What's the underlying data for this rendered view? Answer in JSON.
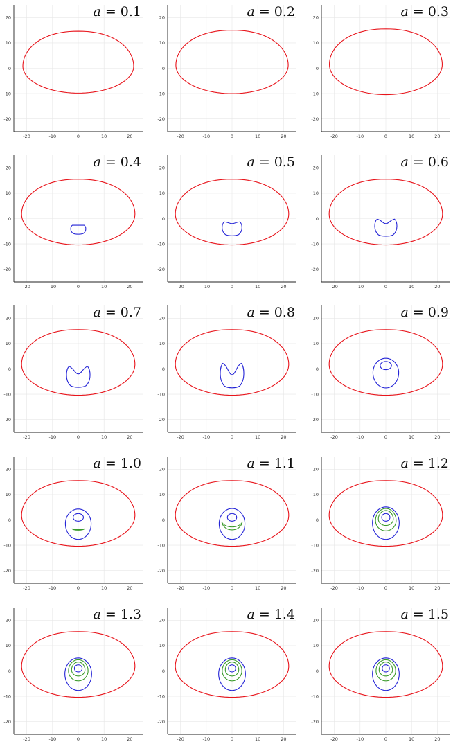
{
  "colors": {
    "outer": "#e8141b",
    "blue": "#2323d6",
    "green": "#3a9a2a"
  },
  "chart_data": {
    "type": "line",
    "layout": "5x3 grid of panels",
    "xlim": [
      -25,
      25
    ],
    "ylim": [
      -25,
      25
    ],
    "xticks": [
      -20,
      -10,
      0,
      10,
      20
    ],
    "yticks": [
      -20,
      -10,
      0,
      10,
      20
    ],
    "grid": true,
    "legend": "none",
    "panels": [
      {
        "title_var": "a",
        "title_eq": "=",
        "title_val": "0.1",
        "outer": {
          "cx": 0,
          "yc": 0.8,
          "rx": 21.5,
          "top": 13.8,
          "bottom": 10.6
        },
        "blue": [],
        "green": []
      },
      {
        "title_var": "a",
        "title_eq": "=",
        "title_val": "0.2",
        "outer": {
          "cx": 0,
          "yc": 1.2,
          "rx": 21.8,
          "top": 13.8,
          "bottom": 11.2
        },
        "blue": [],
        "green": []
      },
      {
        "title_var": "a",
        "title_eq": "=",
        "title_val": "0.3",
        "outer": {
          "cx": 0,
          "yc": 1.5,
          "rx": 21.9,
          "top": 14.0,
          "bottom": 11.9
        },
        "blue": [],
        "green": []
      },
      {
        "title_var": "a",
        "title_eq": "=",
        "title_val": "0.4",
        "outer": {
          "cx": 0,
          "yc": 1.8,
          "rx": 22.0,
          "top": 13.7,
          "bottom": 12.2
        },
        "blue": [
          {
            "kind": "dish",
            "cx": 0,
            "yTop": -2.6,
            "yBottom": -6.2,
            "w": 3.2,
            "dip": 0.0
          }
        ],
        "green": []
      },
      {
        "title_var": "a",
        "title_eq": "=",
        "title_val": "0.5",
        "outer": {
          "cx": 0,
          "yc": 1.8,
          "rx": 22.0,
          "top": 13.7,
          "bottom": 12.2
        },
        "blue": [
          {
            "kind": "dish",
            "cx": 0,
            "yTop": -1.3,
            "yBottom": -6.8,
            "w": 4.2,
            "dip": 0.7
          }
        ],
        "green": []
      },
      {
        "title_var": "a",
        "title_eq": "=",
        "title_val": "0.6",
        "outer": {
          "cx": 0,
          "yc": 1.8,
          "rx": 22.0,
          "top": 13.7,
          "bottom": 12.2
        },
        "blue": [
          {
            "kind": "dish",
            "cx": 0,
            "yTop": -0.2,
            "yBottom": -7.0,
            "w": 4.7,
            "dip": 1.8
          }
        ],
        "green": []
      },
      {
        "title_var": "a",
        "title_eq": "=",
        "title_val": "0.7",
        "outer": {
          "cx": 0,
          "yc": 1.8,
          "rx": 22.0,
          "top": 13.7,
          "bottom": 12.2
        },
        "blue": [
          {
            "kind": "dish",
            "cx": 0,
            "yTop": 1.0,
            "yBottom": -7.3,
            "w": 5.0,
            "dip": 3.0
          }
        ],
        "green": []
      },
      {
        "title_var": "a",
        "title_eq": "=",
        "title_val": "0.8",
        "outer": {
          "cx": 0,
          "yc": 1.8,
          "rx": 22.0,
          "top": 13.7,
          "bottom": 12.2
        },
        "blue": [
          {
            "kind": "dish",
            "cx": 0,
            "yTop": 2.2,
            "yBottom": -7.5,
            "w": 5.0,
            "dip": 4.5
          }
        ],
        "green": []
      },
      {
        "title_var": "a",
        "title_eq": "=",
        "title_val": "0.9",
        "outer": {
          "cx": 0,
          "yc": 1.8,
          "rx": 22.0,
          "top": 13.7,
          "bottom": 12.2
        },
        "blue": [
          {
            "kind": "oval",
            "cx": 0,
            "cy": -1.5,
            "rx": 5.0,
            "top": 5.7,
            "bottom": 6.0
          },
          {
            "kind": "oval",
            "cx": 0,
            "cy": 1.3,
            "rx": 2.2,
            "top": 1.6,
            "bottom": 1.6
          }
        ],
        "green": []
      },
      {
        "title_var": "a",
        "title_eq": "=",
        "title_val": "1.0",
        "outer": {
          "cx": 0,
          "yc": 1.8,
          "rx": 22.0,
          "top": 13.7,
          "bottom": 12.2
        },
        "blue": [
          {
            "kind": "oval",
            "cx": 0,
            "cy": -1.5,
            "rx": 5.0,
            "top": 5.8,
            "bottom": 6.2
          },
          {
            "kind": "oval",
            "cx": 0,
            "cy": 1.0,
            "rx": 2.0,
            "top": 1.5,
            "bottom": 1.5
          }
        ],
        "green": [
          {
            "kind": "crescent",
            "cx": 0,
            "y": -3.5,
            "w": 2.4,
            "depth": 0.6
          }
        ]
      },
      {
        "title_var": "a",
        "title_eq": "=",
        "title_val": "1.1",
        "outer": {
          "cx": 0,
          "yc": 1.8,
          "rx": 22.0,
          "top": 13.7,
          "bottom": 12.2
        },
        "blue": [
          {
            "kind": "oval",
            "cx": 0,
            "cy": -1.5,
            "rx": 5.0,
            "top": 6.0,
            "bottom": 6.2
          },
          {
            "kind": "oval",
            "cx": 0,
            "cy": 1.0,
            "rx": 1.8,
            "top": 1.5,
            "bottom": 1.5
          }
        ],
        "green": [
          {
            "kind": "crescent",
            "cx": 0,
            "y": -0.8,
            "w": 4.0,
            "depth": 3.5
          }
        ]
      },
      {
        "title_var": "a",
        "title_eq": "=",
        "title_val": "1.2",
        "outer": {
          "cx": 0,
          "yc": 1.8,
          "rx": 22.0,
          "top": 13.7,
          "bottom": 12.2
        },
        "blue": [
          {
            "kind": "oval",
            "cx": 0,
            "cy": -1.2,
            "rx": 5.2,
            "top": 6.3,
            "bottom": 6.5
          },
          {
            "kind": "oval",
            "cx": 0,
            "cy": 1.0,
            "rx": 1.6,
            "top": 1.5,
            "bottom": 1.5
          }
        ],
        "green": [
          {
            "kind": "oval",
            "cx": 0,
            "cy": -0.3,
            "rx": 4.0,
            "top": 4.8,
            "bottom": 4.0
          },
          {
            "kind": "oval",
            "cx": 0,
            "cy": 0.3,
            "rx": 2.9,
            "top": 3.4,
            "bottom": 2.5
          }
        ]
      },
      {
        "title_var": "a",
        "title_eq": "=",
        "title_val": "1.3",
        "outer": {
          "cx": 0,
          "yc": 1.8,
          "rx": 22.0,
          "top": 13.7,
          "bottom": 12.2
        },
        "blue": [
          {
            "kind": "oval",
            "cx": 0,
            "cy": -1.2,
            "rx": 5.2,
            "top": 6.3,
            "bottom": 6.5
          },
          {
            "kind": "oval",
            "cx": 0,
            "cy": 1.0,
            "rx": 1.5,
            "top": 1.4,
            "bottom": 1.4
          }
        ],
        "green": [
          {
            "kind": "oval",
            "cx": 0,
            "cy": 0.0,
            "rx": 3.8,
            "top": 4.4,
            "bottom": 3.9
          },
          {
            "kind": "oval",
            "cx": 0,
            "cy": 0.4,
            "rx": 2.6,
            "top": 3.1,
            "bottom": 2.4
          }
        ]
      },
      {
        "title_var": "a",
        "title_eq": "=",
        "title_val": "1.4",
        "outer": {
          "cx": 0,
          "yc": 1.8,
          "rx": 22.0,
          "top": 13.7,
          "bottom": 12.2
        },
        "blue": [
          {
            "kind": "oval",
            "cx": 0,
            "cy": -1.2,
            "rx": 5.2,
            "top": 6.3,
            "bottom": 6.5
          },
          {
            "kind": "oval",
            "cx": 0,
            "cy": 1.0,
            "rx": 1.4,
            "top": 1.4,
            "bottom": 1.4
          }
        ],
        "green": [
          {
            "kind": "oval",
            "cx": 0,
            "cy": 0.0,
            "rx": 3.8,
            "top": 4.4,
            "bottom": 3.9
          },
          {
            "kind": "oval",
            "cx": 0,
            "cy": 0.4,
            "rx": 2.6,
            "top": 3.1,
            "bottom": 2.4
          }
        ]
      },
      {
        "title_var": "a",
        "title_eq": "=",
        "title_val": "1.5",
        "outer": {
          "cx": 0,
          "yc": 1.8,
          "rx": 22.0,
          "top": 13.7,
          "bottom": 12.2
        },
        "blue": [
          {
            "kind": "oval",
            "cx": 0,
            "cy": -1.2,
            "rx": 5.2,
            "top": 6.3,
            "bottom": 6.5
          },
          {
            "kind": "oval",
            "cx": 0,
            "cy": 1.0,
            "rx": 1.4,
            "top": 1.4,
            "bottom": 1.4
          }
        ],
        "green": [
          {
            "kind": "oval",
            "cx": 0,
            "cy": 0.0,
            "rx": 3.8,
            "top": 4.4,
            "bottom": 3.9
          },
          {
            "kind": "oval",
            "cx": 0,
            "cy": 0.4,
            "rx": 2.6,
            "top": 3.1,
            "bottom": 2.4
          }
        ]
      }
    ]
  }
}
